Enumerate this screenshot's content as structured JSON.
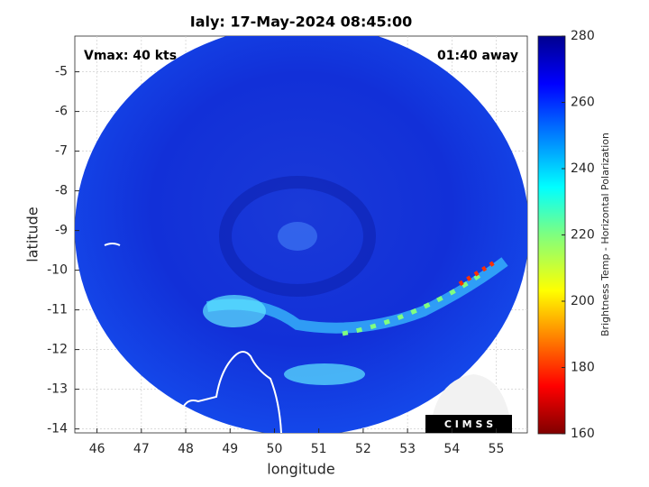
{
  "chart_data": {
    "type": "map",
    "title": "Ialy: 17-May-2024 08:45:00",
    "annotations": [
      "Vmax: 40 kts",
      "01:40 away"
    ],
    "xlabel": "longitude",
    "ylabel": "latitude",
    "xlim": [
      45.5,
      55.7
    ],
    "xticks": [
      46,
      47,
      48,
      49,
      50,
      51,
      52,
      53,
      54,
      55
    ],
    "ylim": [
      -14.1,
      -4.1
    ],
    "yticks": [
      -14,
      -13,
      -12,
      -11,
      -10,
      -9,
      -8,
      -7,
      -6,
      -5
    ],
    "grid": true,
    "colorbar": {
      "label": "Brightness Temp - Horizontal Polarization",
      "lim": [
        160,
        280
      ],
      "ticks": [
        160,
        180,
        200,
        220,
        240,
        260,
        280
      ]
    }
  },
  "logo": "C I M S S"
}
